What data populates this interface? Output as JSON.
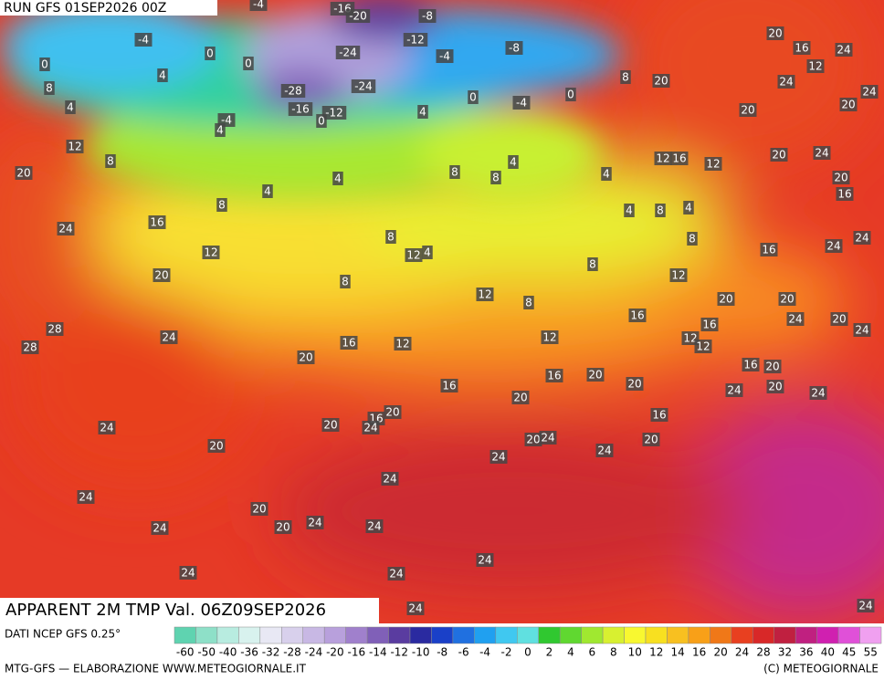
{
  "header": {
    "run": "RUN GFS 01SEP2026 00Z",
    "title": "APPARENT 2M TMP Val. 06Z09SEP2026"
  },
  "footer": {
    "source": "DATI NCEP GFS 0.25°",
    "credit": "MTG-GFS — ELABORAZIONE WWW.METEOGIORNALE.IT",
    "copyright": "(C) METEOGIORNALE"
  },
  "legend": {
    "labels": [
      -60,
      -50,
      -40,
      -36,
      -32,
      -28,
      -24,
      -20,
      -16,
      -14,
      -12,
      -10,
      -8,
      -6,
      -4,
      -2,
      0,
      2,
      4,
      6,
      8,
      10,
      12,
      14,
      16,
      20,
      24,
      28,
      32,
      36,
      40,
      45,
      55
    ]
  },
  "map": {
    "labels": [
      -4,
      -16,
      -20,
      -8,
      -4,
      -12,
      -8,
      -24,
      -4,
      0,
      0,
      0,
      4,
      8,
      -28,
      -24,
      0,
      -4,
      0,
      8,
      20,
      20,
      16,
      24,
      12,
      24,
      24,
      20,
      20,
      -16,
      -12,
      0,
      4,
      -4,
      4,
      4,
      12,
      8,
      20,
      4,
      4,
      8,
      8,
      4,
      4,
      12,
      16,
      12,
      20,
      24,
      20,
      16,
      8,
      4,
      8,
      4,
      16,
      24,
      8,
      12,
      4,
      12,
      8,
      16,
      24,
      24,
      8,
      20,
      12,
      8,
      12,
      8,
      20,
      20,
      16,
      24,
      20,
      28,
      28,
      24,
      16,
      12,
      12,
      16,
      12,
      12,
      24,
      20,
      16,
      20,
      16,
      20,
      20,
      16,
      24,
      20,
      24,
      20,
      20,
      16,
      24,
      20,
      16,
      24,
      20,
      20,
      24,
      20,
      24,
      24,
      24,
      24,
      20,
      24,
      20,
      24,
      24,
      24,
      24,
      24,
      24,
      24
    ]
  }
}
